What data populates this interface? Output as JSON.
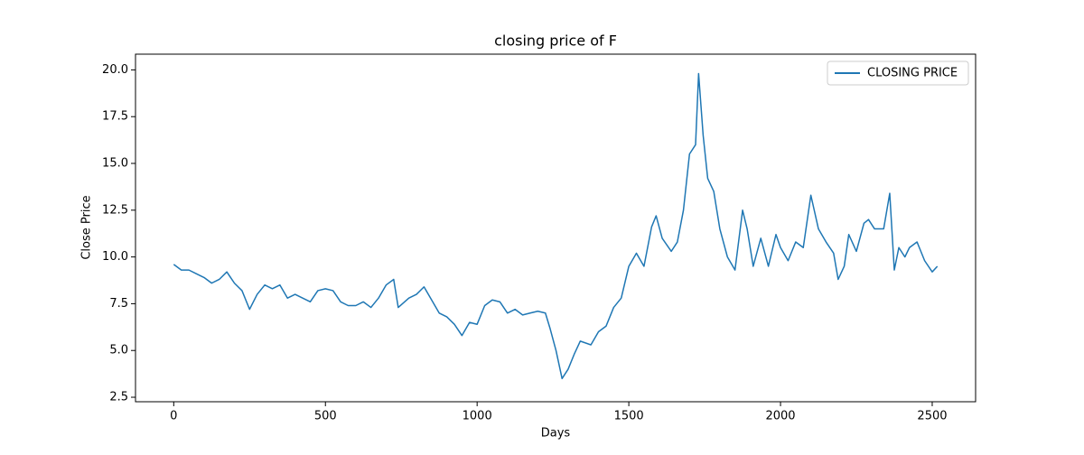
{
  "chart_data": {
    "type": "line",
    "title": "closing price of F",
    "xlabel": "Days",
    "ylabel": "Close Price",
    "x": [
      0,
      25,
      50,
      75,
      100,
      125,
      150,
      175,
      200,
      225,
      250,
      275,
      300,
      325,
      350,
      375,
      400,
      425,
      450,
      475,
      500,
      525,
      550,
      575,
      600,
      625,
      650,
      675,
      700,
      725,
      740,
      775,
      800,
      825,
      850,
      875,
      900,
      925,
      950,
      975,
      1000,
      1025,
      1050,
      1075,
      1100,
      1125,
      1150,
      1175,
      1200,
      1225,
      1240,
      1260,
      1280,
      1300,
      1320,
      1340,
      1375,
      1400,
      1425,
      1450,
      1475,
      1500,
      1525,
      1550,
      1575,
      1590,
      1610,
      1640,
      1660,
      1680,
      1700,
      1720,
      1730,
      1745,
      1760,
      1780,
      1800,
      1825,
      1850,
      1875,
      1890,
      1910,
      1935,
      1960,
      1985,
      2000,
      2025,
      2050,
      2075,
      2100,
      2125,
      2150,
      2175,
      2190,
      2210,
      2225,
      2250,
      2275,
      2290,
      2310,
      2340,
      2360,
      2375,
      2390,
      2410,
      2425,
      2450,
      2475,
      2500,
      2517
    ],
    "series": [
      {
        "name": "CLOSING PRICE",
        "color": "#1f77b4",
        "values": [
          9.6,
          9.3,
          9.3,
          9.1,
          8.9,
          8.6,
          8.8,
          9.2,
          8.6,
          8.2,
          7.2,
          8.0,
          8.5,
          8.3,
          8.5,
          7.8,
          8.0,
          7.8,
          7.6,
          8.2,
          8.3,
          8.2,
          7.6,
          7.4,
          7.4,
          7.6,
          7.3,
          7.8,
          8.5,
          8.8,
          7.3,
          7.8,
          8.0,
          8.4,
          7.7,
          7.0,
          6.8,
          6.4,
          5.8,
          6.5,
          6.4,
          7.4,
          7.7,
          7.6,
          7.0,
          7.2,
          6.9,
          7.0,
          7.1,
          7.0,
          6.2,
          5.0,
          3.5,
          4.0,
          4.8,
          5.5,
          5.3,
          6.0,
          6.3,
          7.3,
          7.8,
          9.5,
          10.2,
          9.5,
          11.6,
          12.2,
          11.0,
          10.3,
          10.8,
          12.5,
          15.5,
          16.0,
          19.8,
          16.5,
          14.2,
          13.5,
          11.5,
          10.0,
          9.3,
          12.5,
          11.5,
          9.5,
          11.0,
          9.5,
          11.2,
          10.5,
          9.8,
          10.8,
          10.5,
          13.3,
          11.5,
          10.8,
          10.2,
          8.8,
          9.5,
          11.2,
          10.3,
          11.8,
          12.0,
          11.5,
          11.5,
          13.4,
          9.3,
          10.5,
          10.0,
          10.5,
          10.8,
          9.8,
          9.2,
          9.5
        ]
      }
    ],
    "xlim": [
      -126,
      2643
    ],
    "ylim": [
      2.26,
      20.84
    ],
    "xticks": [
      0,
      500,
      1000,
      1500,
      2000,
      2500
    ],
    "yticks": [
      2.5,
      {
        "value": 5,
        "label": "5.0"
      },
      7.5,
      {
        "value": 10,
        "label": "10.0"
      },
      12.5,
      {
        "value": 15,
        "label": "15.0"
      },
      17.5,
      {
        "value": 20,
        "label": "20.0"
      }
    ],
    "grid": false,
    "legend": "upper right"
  }
}
